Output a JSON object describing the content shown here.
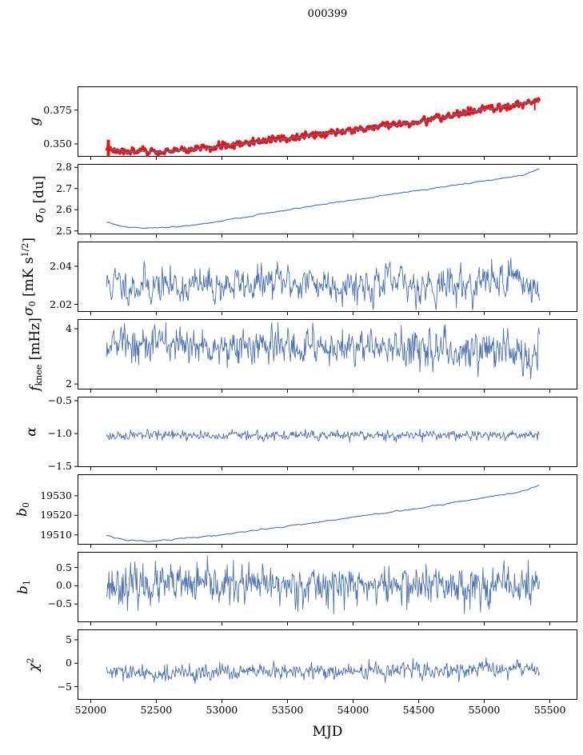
{
  "chart_data": {
    "type": "line",
    "title": "000399",
    "xlabel": "MJD",
    "grid": false,
    "legend": "none",
    "line_color": "#4c72b0",
    "highlight_color": "#ee1111",
    "axis_color": "#000000",
    "xlim": [
      51900,
      55710
    ],
    "x_data_range": [
      52120,
      55420
    ],
    "xticks": [
      52000,
      52500,
      53000,
      53500,
      54000,
      54500,
      55000,
      55500
    ],
    "xtick_labels": [
      "52000",
      "52500",
      "53000",
      "53500",
      "54000",
      "54500",
      "55000",
      "55500"
    ],
    "panels": [
      {
        "id": "g",
        "ylabel_parts": [
          {
            "t": "g",
            "it": true
          }
        ],
        "ylim": [
          0.3405,
          0.3925
        ],
        "yticks": [
          0.35,
          0.375
        ],
        "ytick_labels": [
          "0.350",
          "0.375"
        ],
        "series": [
          {
            "name": "g-raw",
            "color": "#ee1111",
            "width": 3.4,
            "n": 760,
            "seed": 3,
            "noise_std": 0.0012,
            "ar": 0.45,
            "trend": [
              [
                52120,
                0.347
              ],
              [
                52260,
                0.3448
              ],
              [
                52450,
                0.344
              ],
              [
                52750,
                0.3455
              ],
              [
                53000,
                0.3485
              ],
              [
                53500,
                0.354
              ],
              [
                54000,
                0.36
              ],
              [
                54500,
                0.3665
              ],
              [
                55000,
                0.3755
              ],
              [
                55250,
                0.379
              ],
              [
                55420,
                0.382
              ]
            ]
          },
          {
            "name": "g-smoothed",
            "color": "#4c72b0",
            "width": 1.3,
            "n": 760,
            "seed": 5,
            "noise_std": 0.0002,
            "ar": 0.8,
            "trend": [
              [
                52120,
                0.347
              ],
              [
                52260,
                0.3448
              ],
              [
                52450,
                0.344
              ],
              [
                52750,
                0.3455
              ],
              [
                53000,
                0.3485
              ],
              [
                53500,
                0.354
              ],
              [
                54000,
                0.36
              ],
              [
                54500,
                0.3665
              ],
              [
                55000,
                0.3755
              ],
              [
                55250,
                0.379
              ],
              [
                55420,
                0.382
              ]
            ]
          }
        ],
        "extras": [
          {
            "type": "spike",
            "x": 52135,
            "y1": 0.3412,
            "y2": 0.353,
            "color": "#ee1111",
            "w": 4
          },
          {
            "type": "spike",
            "x": 55385,
            "y1": 0.3748,
            "y2": 0.3838,
            "color": "#ee1111",
            "w": 2
          }
        ]
      },
      {
        "id": "sigma0_du",
        "ylabel_parts": [
          {
            "t": "σ",
            "it": true
          },
          {
            "t": "0",
            "sub": true
          },
          {
            "t": " [du]"
          }
        ],
        "ylim": [
          2.484,
          2.816
        ],
        "yticks": [
          2.5,
          2.6,
          2.7,
          2.8
        ],
        "ytick_labels": [
          "2.5",
          "2.6",
          "2.7",
          "2.8"
        ],
        "series": [
          {
            "name": "sigma0-du",
            "color": "#4c72b0",
            "width": 1.1,
            "n": 620,
            "seed": 7,
            "noise_std": 0.0008,
            "ar": 0.8,
            "trend": [
              [
                52120,
                2.54
              ],
              [
                52260,
                2.519
              ],
              [
                52430,
                2.5125
              ],
              [
                52700,
                2.521
              ],
              [
                53000,
                2.548
              ],
              [
                53300,
                2.578
              ],
              [
                53600,
                2.609
              ],
              [
                53900,
                2.637
              ],
              [
                54200,
                2.664
              ],
              [
                54500,
                2.691
              ],
              [
                54800,
                2.717
              ],
              [
                55100,
                2.745
              ],
              [
                55300,
                2.764
              ],
              [
                55420,
                2.797
              ]
            ]
          }
        ],
        "extras": []
      },
      {
        "id": "sigma0_mK",
        "ylabel_parts": [
          {
            "t": "σ",
            "it": true
          },
          {
            "t": "0",
            "sub": true
          },
          {
            "t": " [mK s"
          },
          {
            "t": "1/2",
            "sup": true
          },
          {
            "t": "]"
          }
        ],
        "ylim": [
          2.016,
          2.053
        ],
        "yticks": [
          2.02,
          2.04
        ],
        "ytick_labels": [
          "2.02",
          "2.04"
        ],
        "series": [
          {
            "name": "sigma0-mK",
            "color": "#4c72b0",
            "width": 0.9,
            "n": 700,
            "seed": 11,
            "noise_std": 0.0042,
            "ar": 0.5,
            "clip": [
              2.017,
              2.0495
            ],
            "trend": [
              [
                52120,
                2.0305
              ],
              [
                52800,
                2.0295
              ],
              [
                53500,
                2.0315
              ],
              [
                54300,
                2.0305
              ],
              [
                54900,
                2.03
              ],
              [
                55250,
                2.0355
              ],
              [
                55420,
                2.0245
              ]
            ]
          }
        ],
        "extras": []
      },
      {
        "id": "f_knee",
        "ylabel_parts": [
          {
            "t": "f",
            "it": true
          },
          {
            "t": "knee",
            "sub": true
          },
          {
            "t": " [mHz]"
          }
        ],
        "ylim": [
          1.8,
          4.35
        ],
        "yticks": [
          2,
          4
        ],
        "ytick_labels": [
          "2",
          "4"
        ],
        "series": [
          {
            "name": "f-knee",
            "color": "#4c72b0",
            "width": 0.9,
            "n": 700,
            "seed": 13,
            "noise_std": 0.32,
            "ar": 0.3,
            "clip": [
              2.15,
              4.22
            ],
            "trend": [
              [
                52120,
                3.5
              ],
              [
                52500,
                3.42
              ],
              [
                53200,
                3.35
              ],
              [
                54000,
                3.32
              ],
              [
                54800,
                3.27
              ],
              [
                55420,
                3.18
              ]
            ]
          }
        ],
        "extras": []
      },
      {
        "id": "alpha",
        "ylabel_parts": [
          {
            "t": "α",
            "it": true
          }
        ],
        "ylim": [
          -1.51,
          -0.44
        ],
        "yticks": [
          -1.5,
          -1.0,
          -0.5
        ],
        "ytick_labels": [
          "−1.5",
          "−1.0",
          "−0.5"
        ],
        "series": [
          {
            "name": "alpha",
            "color": "#4c72b0",
            "width": 0.9,
            "n": 700,
            "seed": 17,
            "noise_std": 0.034,
            "ar": 0.25,
            "clip": [
              -1.48,
              -0.8
            ],
            "trend": [
              [
                52120,
                -1.035
              ],
              [
                53800,
                -1.028
              ],
              [
                55420,
                -1.02
              ]
            ]
          }
        ],
        "extras": []
      },
      {
        "id": "b0",
        "ylabel_parts": [
          {
            "t": "b",
            "it": true
          },
          {
            "t": "0",
            "sub": true
          }
        ],
        "ylim": [
          19505,
          19541
        ],
        "yticks": [
          19510,
          19520,
          19530
        ],
        "ytick_labels": [
          "19510",
          "19520",
          "19530"
        ],
        "series": [
          {
            "name": "b0",
            "color": "#4c72b0",
            "width": 1.1,
            "n": 620,
            "seed": 19,
            "noise_std": 0.1,
            "ar": 0.85,
            "trend": [
              [
                52120,
                19509.6
              ],
              [
                52260,
                19507.5
              ],
              [
                52450,
                19506.9
              ],
              [
                52750,
                19508.2
              ],
              [
                53050,
                19510.5
              ],
              [
                53400,
                19513.5
              ],
              [
                53800,
                19517.2
              ],
              [
                54200,
                19520.8
              ],
              [
                54600,
                19524.8
              ],
              [
                55000,
                19529.0
              ],
              [
                55200,
                19531.2
              ],
              [
                55330,
                19533.0
              ],
              [
                55420,
                19536.0
              ]
            ]
          }
        ],
        "extras": []
      },
      {
        "id": "b1",
        "ylabel_parts": [
          {
            "t": "b",
            "it": true
          },
          {
            "t": "1",
            "sub": true
          }
        ],
        "ylim": [
          -1.0,
          0.93
        ],
        "yticks": [
          -0.5,
          0.0,
          0.5
        ],
        "ytick_labels": [
          "−0.5",
          "0.0",
          "0.5"
        ],
        "series": [
          {
            "name": "b1",
            "color": "#4c72b0",
            "width": 0.9,
            "n": 700,
            "seed": 23,
            "noise_std": 0.26,
            "ar": 0.15,
            "clip": [
              -0.95,
              0.88
            ],
            "trend": [
              [
                52120,
                0.02
              ],
              [
                55420,
                0.0
              ]
            ]
          }
        ],
        "extras": []
      },
      {
        "id": "chi2",
        "ylabel_parts": [
          {
            "t": "χ",
            "it": true
          },
          {
            "t": "2",
            "sup": true
          }
        ],
        "ylim": [
          -7.8,
          7.2
        ],
        "yticks": [
          -5,
          0,
          5
        ],
        "ytick_labels": [
          "−5",
          "0",
          "5"
        ],
        "series": [
          {
            "name": "chi2",
            "color": "#4c72b0",
            "width": 0.9,
            "n": 700,
            "seed": 29,
            "noise_std": 0.8,
            "ar": 0.3,
            "clip": [
              -5.4,
              1.2
            ],
            "trend": [
              [
                52120,
                -1.9
              ],
              [
                52400,
                -2.3
              ],
              [
                52900,
                -2.0
              ],
              [
                53500,
                -1.9
              ],
              [
                54200,
                -1.7
              ],
              [
                54800,
                -1.5
              ],
              [
                55420,
                -1.15
              ]
            ]
          }
        ],
        "extras": []
      }
    ]
  }
}
